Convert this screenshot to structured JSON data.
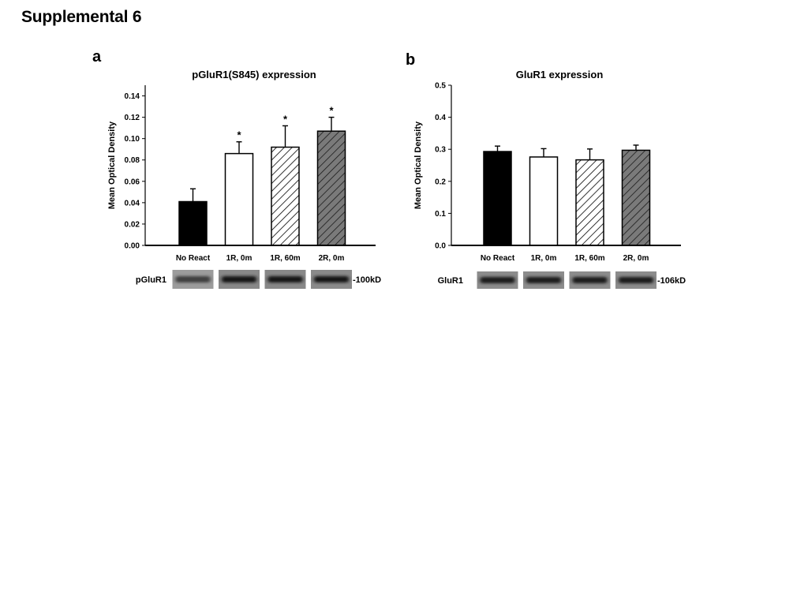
{
  "page": {
    "title": "Supplemental 6"
  },
  "colors": {
    "no_react": "#000000",
    "one_r_0m": "#ffffff",
    "one_r_60m": "hatch-white",
    "two_r_0m": "#808080"
  },
  "chart_data": [
    {
      "panel": "a",
      "type": "bar",
      "title": "pGluR1(S845) expression",
      "ylabel": "Mean Optical Density",
      "xlabel": "",
      "categories": [
        "No React",
        "1R, 0m",
        "1R, 60m",
        "2R, 0m"
      ],
      "values": [
        0.041,
        0.086,
        0.092,
        0.107
      ],
      "errors": [
        0.012,
        0.011,
        0.02,
        0.013
      ],
      "significance": [
        "",
        "*",
        "*",
        "*"
      ],
      "ylim": [
        0,
        0.15
      ],
      "yticks": [
        "0.00",
        "0.02",
        "0.04",
        "0.06",
        "0.08",
        "0.10",
        "0.12",
        "0.14"
      ],
      "fills": [
        "solid-black",
        "white",
        "hatch-white",
        "hatch-gray"
      ],
      "blot": {
        "label": "pGluR1",
        "size": "-100kD",
        "band_intensity": [
          0.35,
          0.85,
          0.85,
          0.8
        ]
      }
    },
    {
      "panel": "b",
      "type": "bar",
      "title": "GluR1 expression",
      "ylabel": "Mean Optical Density",
      "xlabel": "",
      "categories": [
        "No React",
        "1R, 0m",
        "1R, 60m",
        "2R, 0m"
      ],
      "values": [
        0.293,
        0.276,
        0.267,
        0.297
      ],
      "errors": [
        0.017,
        0.026,
        0.034,
        0.016
      ],
      "significance": [
        "",
        "",
        "",
        ""
      ],
      "ylim": [
        0,
        0.5
      ],
      "yticks": [
        "0.0",
        "0.1",
        "0.2",
        "0.3",
        "0.4",
        "0.5"
      ],
      "fills": [
        "solid-black",
        "white",
        "hatch-white",
        "hatch-gray"
      ],
      "blot": {
        "label": "GluR1",
        "size": "-106kD",
        "band_intensity": [
          0.75,
          0.75,
          0.75,
          0.75
        ]
      }
    }
  ]
}
